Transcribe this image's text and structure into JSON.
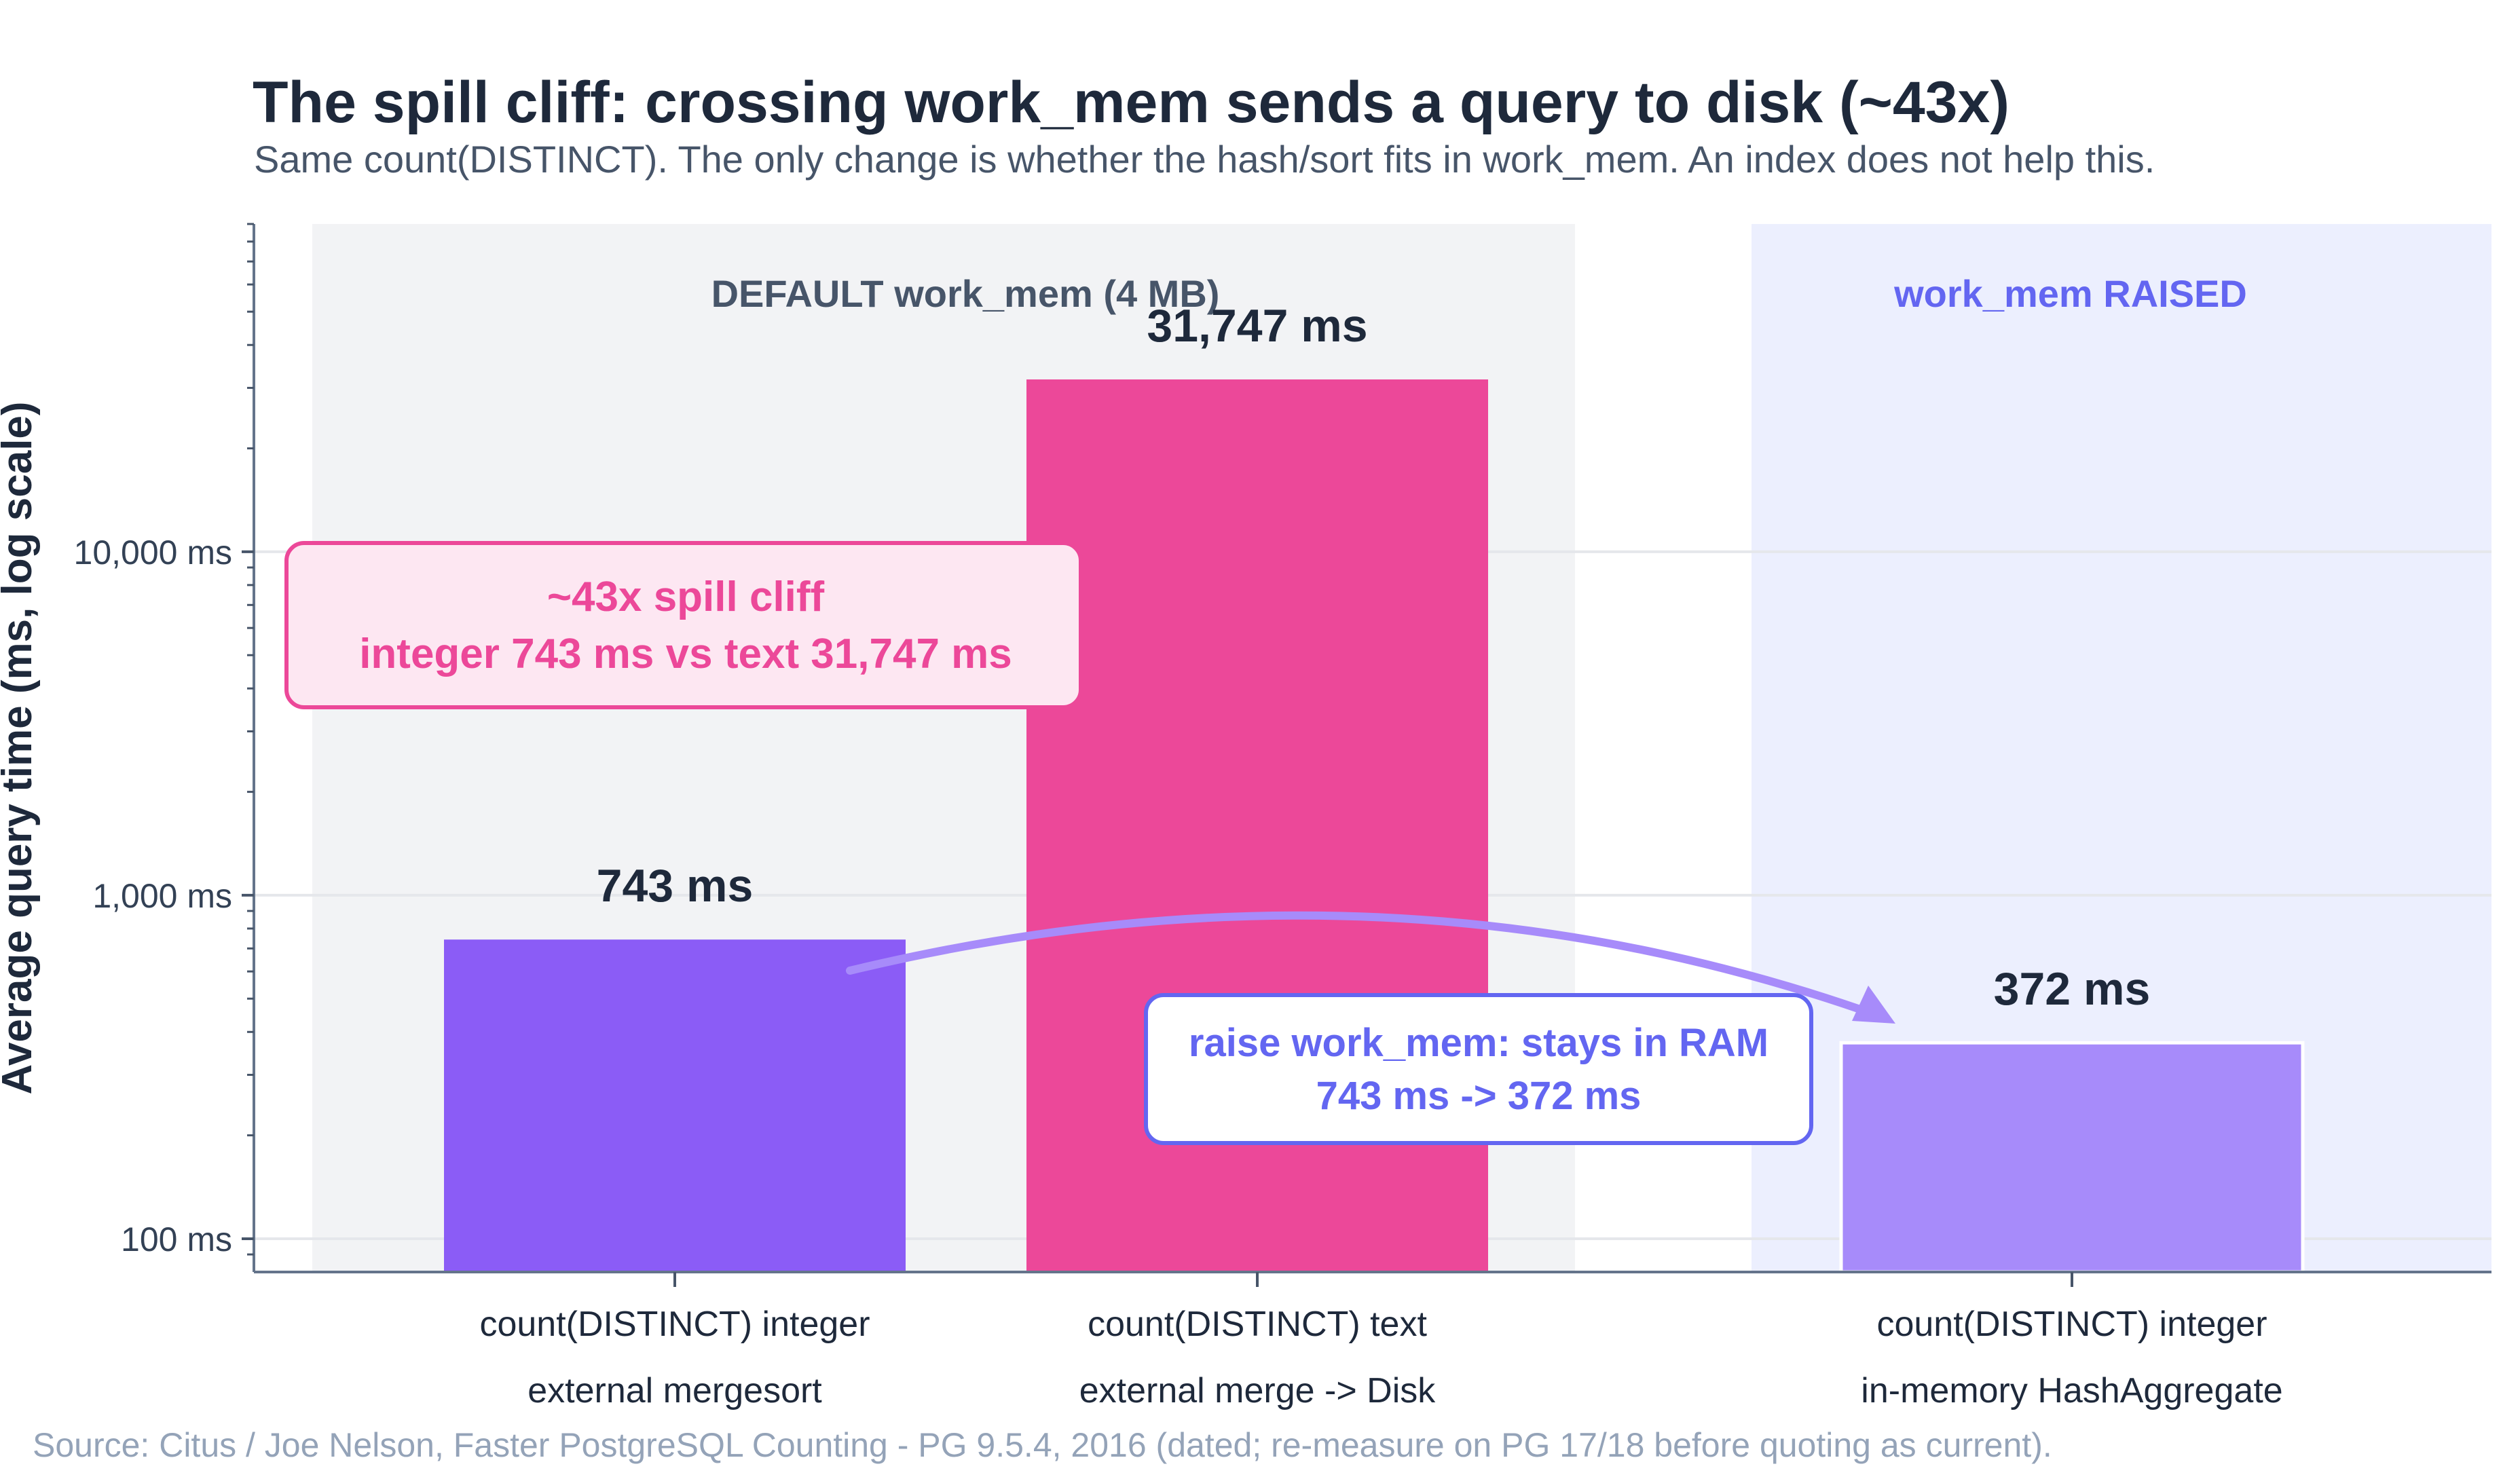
{
  "chart_data": {
    "type": "bar",
    "title": "The spill cliff: crossing work_mem sends a query to disk (~43x)",
    "subtitle": "Same count(DISTINCT). The only change is whether the hash/sort fits in work_mem. An index does not help this.",
    "ylabel": "Average query time (ms, log scale)",
    "yscale": "log",
    "ylim": [
      80,
      90000
    ],
    "yticks": [
      {
        "value": 100,
        "label": "100 ms"
      },
      {
        "value": 1000,
        "label": "1,000 ms"
      },
      {
        "value": 10000,
        "label": "10,000 ms"
      }
    ],
    "grid": true,
    "regions": [
      {
        "label": "DEFAULT work_mem (4 MB)",
        "color": "#f2f3f5",
        "label_color": "#475569"
      },
      {
        "label": "work_mem RAISED",
        "color": "#eceffe",
        "label_color": "#6366f1"
      }
    ],
    "categories": [
      {
        "line1": "count(DISTINCT) integer",
        "line2": "external mergesort",
        "region": 0
      },
      {
        "line1": "count(DISTINCT) text",
        "line2": "external merge -> Disk",
        "region": 0
      },
      {
        "line1": "count(DISTINCT) integer",
        "line2": "in-memory HashAggregate",
        "region": 1
      }
    ],
    "values": [
      743,
      31747,
      372
    ],
    "value_labels": [
      "743 ms",
      "31,747 ms",
      "372 ms"
    ],
    "colors": [
      "#8b5cf6",
      "#ec4899",
      "#a78bfa"
    ],
    "annotations": {
      "cliff": {
        "line1": "~43x spill cliff",
        "line2": "integer 743 ms  vs  text 31,747 ms",
        "text_color": "#ec4899",
        "fill": "#fde7f2",
        "border": "#ec4899"
      },
      "raise": {
        "line1": "raise work_mem: stays in RAM",
        "line2": "743 ms  ->  372 ms",
        "text_color": "#6366f1",
        "fill": "#ffffff",
        "border": "#6366f1",
        "arrow_color": "#a78bfa"
      }
    },
    "source": "Source: Citus / Joe Nelson, Faster PostgreSQL Counting  -  PG 9.5.4, 2016 (dated; re-measure on PG 17/18 before quoting as current)."
  }
}
